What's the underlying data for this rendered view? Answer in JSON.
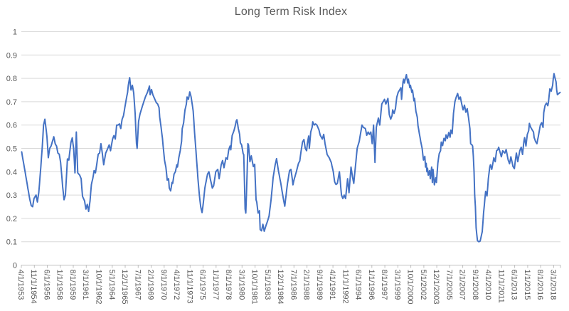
{
  "chart_data": {
    "type": "line",
    "title": "Long Term Risk Index",
    "series_name": "Long Term Risk Index",
    "xlabel": "",
    "ylabel": "",
    "ylim": [
      0,
      1
    ],
    "y_tick_labels": [
      "0",
      "0.1",
      "0.2",
      "0.3",
      "0.4",
      "0.5",
      "0.6",
      "0.7",
      "0.8",
      "0.9",
      "1"
    ],
    "grid": "horizontal",
    "legend": "none",
    "x_start": "4/1/1953",
    "x_end": "12/1/2018",
    "x_label_interval_months": 19,
    "months_total": 789,
    "x_tick_labels": [
      "4/1/1953",
      "11/1/1954",
      "6/1/1956",
      "1/1/1958",
      "8/1/1959",
      "3/1/1961",
      "10/1/1962",
      "5/1/1964",
      "12/1/1965",
      "7/1/1967",
      "2/1/1969",
      "9/1/1970",
      "4/1/1972",
      "11/1/1973",
      "6/1/1975",
      "1/1/1977",
      "8/1/1978",
      "3/1/1980",
      "10/1/1981",
      "5/1/1983",
      "12/1/1984",
      "7/1/1986",
      "2/1/1988",
      "9/1/1989",
      "4/1/1991",
      "11/1/1992",
      "6/1/1994",
      "1/1/1996",
      "8/1/1997",
      "3/1/1999",
      "10/1/2000",
      "5/1/2002",
      "12/1/2003",
      "7/1/2005",
      "2/1/2007",
      "9/1/2008",
      "4/1/2010",
      "11/1/2011",
      "6/1/2013",
      "1/1/2015",
      "8/1/2016",
      "3/1/2018"
    ],
    "anchors": [
      [
        0,
        0.485
      ],
      [
        2,
        0.45
      ],
      [
        5,
        0.4
      ],
      [
        9,
        0.33
      ],
      [
        12,
        0.28
      ],
      [
        14,
        0.255
      ],
      [
        16,
        0.25
      ],
      [
        18,
        0.285
      ],
      [
        21,
        0.3
      ],
      [
        23,
        0.27
      ],
      [
        25,
        0.31
      ],
      [
        28,
        0.42
      ],
      [
        30,
        0.5
      ],
      [
        32,
        0.6
      ],
      [
        34,
        0.625
      ],
      [
        37,
        0.55
      ],
      [
        39,
        0.46
      ],
      [
        41,
        0.5
      ],
      [
        43,
        0.51
      ],
      [
        45,
        0.53
      ],
      [
        47,
        0.55
      ],
      [
        49,
        0.52
      ],
      [
        51,
        0.51
      ],
      [
        53,
        0.48
      ],
      [
        55,
        0.475
      ],
      [
        57,
        0.44
      ],
      [
        60,
        0.335
      ],
      [
        62,
        0.28
      ],
      [
        64,
        0.3
      ],
      [
        67,
        0.455
      ],
      [
        69,
        0.45
      ],
      [
        72,
        0.525
      ],
      [
        74,
        0.545
      ],
      [
        76,
        0.5
      ],
      [
        78,
        0.395
      ],
      [
        80,
        0.57
      ],
      [
        82,
        0.395
      ],
      [
        85,
        0.385
      ],
      [
        87,
        0.37
      ],
      [
        89,
        0.295
      ],
      [
        92,
        0.275
      ],
      [
        94,
        0.24
      ],
      [
        96,
        0.26
      ],
      [
        98,
        0.23
      ],
      [
        100,
        0.275
      ],
      [
        102,
        0.345
      ],
      [
        104,
        0.37
      ],
      [
        106,
        0.405
      ],
      [
        108,
        0.395
      ],
      [
        110,
        0.435
      ],
      [
        112,
        0.475
      ],
      [
        114,
        0.48
      ],
      [
        116,
        0.52
      ],
      [
        118,
        0.48
      ],
      [
        120,
        0.43
      ],
      [
        123,
        0.48
      ],
      [
        126,
        0.5
      ],
      [
        128,
        0.515
      ],
      [
        130,
        0.49
      ],
      [
        133,
        0.54
      ],
      [
        135,
        0.555
      ],
      [
        137,
        0.54
      ],
      [
        139,
        0.6
      ],
      [
        141,
        0.6
      ],
      [
        143,
        0.605
      ],
      [
        145,
        0.585
      ],
      [
        147,
        0.625
      ],
      [
        149,
        0.64
      ],
      [
        151,
        0.675
      ],
      [
        153,
        0.71
      ],
      [
        155,
        0.74
      ],
      [
        156,
        0.77
      ],
      [
        158,
        0.803
      ],
      [
        160,
        0.75
      ],
      [
        162,
        0.77
      ],
      [
        164,
        0.737
      ],
      [
        166,
        0.65
      ],
      [
        168,
        0.52
      ],
      [
        169,
        0.5
      ],
      [
        171,
        0.614
      ],
      [
        173,
        0.645
      ],
      [
        176,
        0.675
      ],
      [
        181,
        0.72
      ],
      [
        184,
        0.74
      ],
      [
        187,
        0.767
      ],
      [
        188,
        0.73
      ],
      [
        190,
        0.752
      ],
      [
        192,
        0.73
      ],
      [
        194,
        0.716
      ],
      [
        197,
        0.696
      ],
      [
        199,
        0.69
      ],
      [
        201,
        0.675
      ],
      [
        202,
        0.635
      ],
      [
        204,
        0.59
      ],
      [
        206,
        0.543
      ],
      [
        209,
        0.45
      ],
      [
        211,
        0.42
      ],
      [
        213,
        0.364
      ],
      [
        215,
        0.37
      ],
      [
        216,
        0.33
      ],
      [
        218,
        0.318
      ],
      [
        220,
        0.354
      ],
      [
        221,
        0.35
      ],
      [
        223,
        0.39
      ],
      [
        225,
        0.4
      ],
      [
        227,
        0.43
      ],
      [
        228,
        0.42
      ],
      [
        230,
        0.46
      ],
      [
        232,
        0.49
      ],
      [
        234,
        0.53
      ],
      [
        235,
        0.584
      ],
      [
        237,
        0.61
      ],
      [
        239,
        0.665
      ],
      [
        241,
        0.69
      ],
      [
        242,
        0.72
      ],
      [
        244,
        0.71
      ],
      [
        246,
        0.742
      ],
      [
        248,
        0.72
      ],
      [
        251,
        0.66
      ],
      [
        253,
        0.57
      ],
      [
        256,
        0.45
      ],
      [
        258,
        0.37
      ],
      [
        260,
        0.3
      ],
      [
        262,
        0.25
      ],
      [
        264,
        0.225
      ],
      [
        266,
        0.27
      ],
      [
        268,
        0.33
      ],
      [
        270,
        0.36
      ],
      [
        272,
        0.39
      ],
      [
        274,
        0.4
      ],
      [
        276,
        0.37
      ],
      [
        279,
        0.33
      ],
      [
        281,
        0.34
      ],
      [
        284,
        0.4
      ],
      [
        287,
        0.41
      ],
      [
        289,
        0.37
      ],
      [
        292,
        0.43
      ],
      [
        294,
        0.448
      ],
      [
        296,
        0.417
      ],
      [
        299,
        0.46
      ],
      [
        301,
        0.453
      ],
      [
        303,
        0.494
      ],
      [
        305,
        0.51
      ],
      [
        306,
        0.494
      ],
      [
        308,
        0.555
      ],
      [
        310,
        0.57
      ],
      [
        312,
        0.59
      ],
      [
        314,
        0.617
      ],
      [
        315,
        0.623
      ],
      [
        317,
        0.586
      ],
      [
        319,
        0.56
      ],
      [
        320,
        0.524
      ],
      [
        322,
        0.514
      ],
      [
        324,
        0.478
      ],
      [
        325,
        0.473
      ],
      [
        327,
        0.24
      ],
      [
        328,
        0.223
      ],
      [
        330,
        0.4
      ],
      [
        331,
        0.52
      ],
      [
        332,
        0.514
      ],
      [
        334,
        0.443
      ],
      [
        336,
        0.468
      ],
      [
        337,
        0.453
      ],
      [
        339,
        0.422
      ],
      [
        341,
        0.432
      ],
      [
        343,
        0.28
      ],
      [
        344,
        0.27
      ],
      [
        346,
        0.223
      ],
      [
        348,
        0.233
      ],
      [
        349,
        0.152
      ],
      [
        351,
        0.147
      ],
      [
        353,
        0.175
      ],
      [
        355,
        0.145
      ],
      [
        357,
        0.165
      ],
      [
        360,
        0.19
      ],
      [
        362,
        0.21
      ],
      [
        365,
        0.28
      ],
      [
        368,
        0.375
      ],
      [
        371,
        0.43
      ],
      [
        373,
        0.456
      ],
      [
        376,
        0.4
      ],
      [
        379,
        0.354
      ],
      [
        382,
        0.3
      ],
      [
        385,
        0.252
      ],
      [
        389,
        0.35
      ],
      [
        392,
        0.405
      ],
      [
        394,
        0.41
      ],
      [
        396,
        0.37
      ],
      [
        397,
        0.344
      ],
      [
        399,
        0.37
      ],
      [
        402,
        0.4
      ],
      [
        405,
        0.435
      ],
      [
        407,
        0.446
      ],
      [
        409,
        0.49
      ],
      [
        411,
        0.527
      ],
      [
        413,
        0.538
      ],
      [
        415,
        0.5
      ],
      [
        417,
        0.49
      ],
      [
        418,
        0.52
      ],
      [
        420,
        0.553
      ],
      [
        421,
        0.5
      ],
      [
        423,
        0.57
      ],
      [
        425,
        0.59
      ],
      [
        426,
        0.614
      ],
      [
        428,
        0.6
      ],
      [
        430,
        0.605
      ],
      [
        432,
        0.6
      ],
      [
        435,
        0.58
      ],
      [
        437,
        0.556
      ],
      [
        440,
        0.54
      ],
      [
        442,
        0.56
      ],
      [
        444,
        0.52
      ],
      [
        447,
        0.474
      ],
      [
        450,
        0.46
      ],
      [
        453,
        0.44
      ],
      [
        456,
        0.4
      ],
      [
        458,
        0.357
      ],
      [
        460,
        0.345
      ],
      [
        462,
        0.35
      ],
      [
        465,
        0.4
      ],
      [
        468,
        0.3
      ],
      [
        470,
        0.285
      ],
      [
        472,
        0.3
      ],
      [
        474,
        0.285
      ],
      [
        477,
        0.37
      ],
      [
        479,
        0.31
      ],
      [
        482,
        0.42
      ],
      [
        484,
        0.38
      ],
      [
        486,
        0.35
      ],
      [
        489,
        0.44
      ],
      [
        491,
        0.5
      ],
      [
        494,
        0.53
      ],
      [
        498,
        0.6
      ],
      [
        500,
        0.59
      ],
      [
        503,
        0.585
      ],
      [
        505,
        0.556
      ],
      [
        507,
        0.57
      ],
      [
        509,
        0.56
      ],
      [
        511,
        0.57
      ],
      [
        513,
        0.52
      ],
      [
        515,
        0.6
      ],
      [
        517,
        0.44
      ],
      [
        519,
        0.59
      ],
      [
        522,
        0.63
      ],
      [
        524,
        0.6
      ],
      [
        527,
        0.69
      ],
      [
        529,
        0.7
      ],
      [
        531,
        0.71
      ],
      [
        533,
        0.69
      ],
      [
        536,
        0.714
      ],
      [
        538,
        0.645
      ],
      [
        540,
        0.625
      ],
      [
        542,
        0.64
      ],
      [
        543,
        0.665
      ],
      [
        545,
        0.65
      ],
      [
        547,
        0.67
      ],
      [
        549,
        0.72
      ],
      [
        551,
        0.74
      ],
      [
        553,
        0.75
      ],
      [
        555,
        0.76
      ],
      [
        556,
        0.71
      ],
      [
        558,
        0.785
      ],
      [
        559,
        0.796
      ],
      [
        560,
        0.78
      ],
      [
        563,
        0.816
      ],
      [
        565,
        0.78
      ],
      [
        566,
        0.796
      ],
      [
        568,
        0.76
      ],
      [
        569,
        0.77
      ],
      [
        571,
        0.74
      ],
      [
        572,
        0.75
      ],
      [
        574,
        0.704
      ],
      [
        575,
        0.714
      ],
      [
        577,
        0.658
      ],
      [
        579,
        0.633
      ],
      [
        580,
        0.597
      ],
      [
        582,
        0.563
      ],
      [
        584,
        0.53
      ],
      [
        586,
        0.5
      ],
      [
        588,
        0.45
      ],
      [
        590,
        0.466
      ],
      [
        591,
        0.42
      ],
      [
        592,
        0.436
      ],
      [
        593,
        0.4
      ],
      [
        594,
        0.415
      ],
      [
        595,
        0.385
      ],
      [
        597,
        0.405
      ],
      [
        598,
        0.37
      ],
      [
        600,
        0.42
      ],
      [
        601,
        0.354
      ],
      [
        602,
        0.41
      ],
      [
        604,
        0.344
      ],
      [
        606,
        0.374
      ],
      [
        607,
        0.354
      ],
      [
        609,
        0.436
      ],
      [
        611,
        0.477
      ],
      [
        613,
        0.49
      ],
      [
        614,
        0.527
      ],
      [
        616,
        0.512
      ],
      [
        618,
        0.543
      ],
      [
        620,
        0.533
      ],
      [
        621,
        0.558
      ],
      [
        623,
        0.543
      ],
      [
        625,
        0.568
      ],
      [
        627,
        0.548
      ],
      [
        628,
        0.578
      ],
      [
        630,
        0.563
      ],
      [
        632,
        0.65
      ],
      [
        634,
        0.7
      ],
      [
        636,
        0.72
      ],
      [
        638,
        0.735
      ],
      [
        640,
        0.71
      ],
      [
        642,
        0.72
      ],
      [
        644,
        0.69
      ],
      [
        646,
        0.665
      ],
      [
        648,
        0.685
      ],
      [
        650,
        0.655
      ],
      [
        652,
        0.67
      ],
      [
        654,
        0.63
      ],
      [
        656,
        0.585
      ],
      [
        657,
        0.52
      ],
      [
        659,
        0.515
      ],
      [
        660,
        0.51
      ],
      [
        661,
        0.466
      ],
      [
        662,
        0.4
      ],
      [
        663,
        0.3
      ],
      [
        664,
        0.25
      ],
      [
        665,
        0.16
      ],
      [
        667,
        0.105
      ],
      [
        669,
        0.1
      ],
      [
        671,
        0.103
      ],
      [
        674,
        0.143
      ],
      [
        676,
        0.224
      ],
      [
        678,
        0.286
      ],
      [
        679,
        0.316
      ],
      [
        681,
        0.296
      ],
      [
        683,
        0.37
      ],
      [
        685,
        0.42
      ],
      [
        686,
        0.43
      ],
      [
        688,
        0.41
      ],
      [
        691,
        0.46
      ],
      [
        693,
        0.443
      ],
      [
        695,
        0.49
      ],
      [
        697,
        0.495
      ],
      [
        698,
        0.505
      ],
      [
        702,
        0.464
      ],
      [
        704,
        0.49
      ],
      [
        707,
        0.48
      ],
      [
        709,
        0.495
      ],
      [
        712,
        0.45
      ],
      [
        714,
        0.434
      ],
      [
        716,
        0.464
      ],
      [
        719,
        0.423
      ],
      [
        721,
        0.413
      ],
      [
        723,
        0.46
      ],
      [
        724,
        0.48
      ],
      [
        726,
        0.443
      ],
      [
        729,
        0.49
      ],
      [
        731,
        0.505
      ],
      [
        733,
        0.474
      ],
      [
        735,
        0.53
      ],
      [
        736,
        0.546
      ],
      [
        738,
        0.51
      ],
      [
        740,
        0.56
      ],
      [
        742,
        0.576
      ],
      [
        743,
        0.607
      ],
      [
        745,
        0.59
      ],
      [
        749,
        0.57
      ],
      [
        750,
        0.546
      ],
      [
        752,
        0.53
      ],
      [
        754,
        0.52
      ],
      [
        756,
        0.55
      ],
      [
        757,
        0.566
      ],
      [
        759,
        0.6
      ],
      [
        761,
        0.61
      ],
      [
        763,
        0.59
      ],
      [
        764,
        0.653
      ],
      [
        766,
        0.684
      ],
      [
        768,
        0.694
      ],
      [
        770,
        0.683
      ],
      [
        771,
        0.7
      ],
      [
        773,
        0.755
      ],
      [
        775,
        0.745
      ],
      [
        777,
        0.77
      ],
      [
        778,
        0.8
      ],
      [
        779,
        0.82
      ],
      [
        782,
        0.785
      ],
      [
        783,
        0.75
      ],
      [
        784,
        0.73
      ],
      [
        786,
        0.735
      ],
      [
        788,
        0.74
      ]
    ]
  },
  "colors": {
    "line": "#4472C4",
    "grid": "#D9D9D9",
    "axis": "#BFBFBF",
    "text": "#595959",
    "background": "#FFFFFF"
  }
}
